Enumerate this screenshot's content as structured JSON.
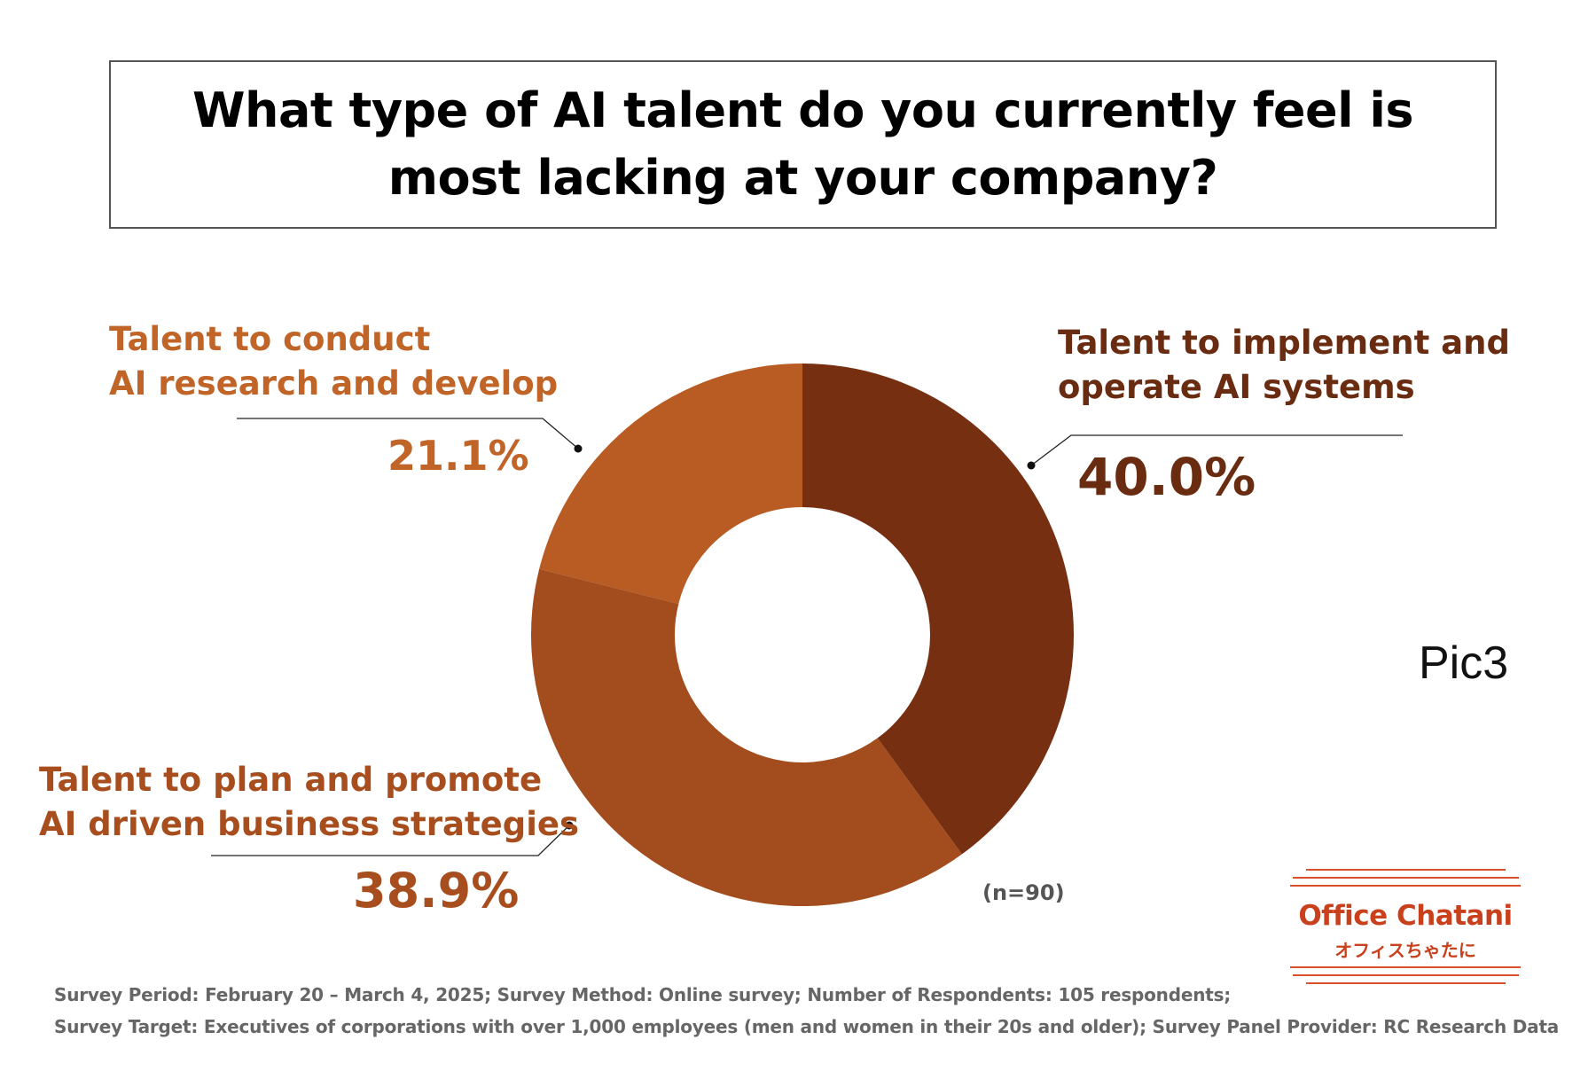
{
  "chart_data": {
    "type": "pie",
    "title": "What type of AI talent do you currently feel is\nmost lacking at your company?",
    "slices": [
      {
        "name": "Talent to implement and\noperate AI systems",
        "value": 40.0,
        "label": "40.0%",
        "color": "#772f12"
      },
      {
        "name": "Talent to plan and promote\nAI driven business strategies",
        "value": 38.9,
        "label": "38.9%",
        "color": "#a34c1e"
      },
      {
        "name": "Talent to conduct\nAI research and develop",
        "value": 21.1,
        "label": "21.1%",
        "color": "#b85c24"
      }
    ],
    "sample_note": "(n=90)"
  },
  "pic_label": "Pic3",
  "footnote": {
    "line1": "Survey Period: February 20 – March 4, 2025; Survey Method: Online survey; Number of Respondents: 105 respondents;",
    "line2": "Survey Target: Executives of corporations with over 1,000 employees (men and women in their 20s and older); Survey Panel Provider: RC Research Data"
  },
  "logo": {
    "name": "Office Chatani",
    "subtitle": "オフィスちゃたに"
  }
}
